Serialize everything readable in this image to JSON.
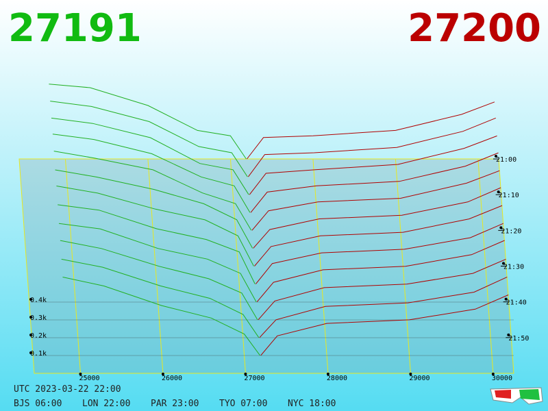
{
  "chart_data": {
    "type": "depth3d",
    "best_bid": 27191,
    "best_ask": 27200,
    "bid_color": "#22b022",
    "ask_color": "#b00000",
    "xlim": [
      24440,
      30250
    ],
    "xticks": [
      25000,
      26000,
      27000,
      28000,
      29000,
      30000
    ],
    "ylim": [
      0,
      600
    ],
    "yticks": [
      {
        "value": 100,
        "label": "0.1k"
      },
      {
        "value": 200,
        "label": "0.2k"
      },
      {
        "value": 300,
        "label": "0.3k"
      },
      {
        "value": 400,
        "label": "0.4k"
      }
    ],
    "zlim": [
      0,
      60
    ],
    "zticks": [
      {
        "value": 0,
        "label": "21:00"
      },
      {
        "value": 10,
        "label": "21:10"
      },
      {
        "value": 20,
        "label": "21:20"
      },
      {
        "value": 30,
        "label": "21:30"
      },
      {
        "value": 40,
        "label": "21:40"
      },
      {
        "value": 50,
        "label": "21:50"
      }
    ],
    "bid_prices": [
      24800,
      25300,
      26000,
      26600,
      27000,
      27191
    ],
    "ask_prices": [
      27200,
      27400,
      28000,
      29000,
      29800,
      30200
    ],
    "snapshots": [
      {
        "t": 0,
        "bids": [
          420,
          400,
          300,
          160,
          130,
          0
        ],
        "asks": [
          0,
          120,
          130,
          160,
          250,
          320
        ]
      },
      {
        "t": 5,
        "bids": [
          425,
          395,
          310,
          170,
          135,
          0
        ],
        "asks": [
          0,
          125,
          135,
          165,
          255,
          330
        ]
      },
      {
        "t": 10,
        "bids": [
          430,
          400,
          320,
          175,
          140,
          0
        ],
        "asks": [
          0,
          120,
          140,
          170,
          260,
          330
        ]
      },
      {
        "t": 15,
        "bids": [
          440,
          410,
          330,
          200,
          150,
          0
        ],
        "asks": [
          0,
          115,
          150,
          175,
          260,
          335
        ]
      },
      {
        "t": 20,
        "bids": [
          445,
          405,
          340,
          210,
          150,
          0
        ],
        "asks": [
          0,
          110,
          160,
          180,
          265,
          335
        ]
      },
      {
        "t": 25,
        "bids": [
          440,
          400,
          330,
          250,
          160,
          0
        ],
        "asks": [
          0,
          105,
          165,
          185,
          260,
          340
        ]
      },
      {
        "t": 30,
        "bids": [
          450,
          410,
          320,
          260,
          170,
          0
        ],
        "asks": [
          0,
          110,
          170,
          190,
          265,
          340
        ]
      },
      {
        "t": 35,
        "bids": [
          445,
          415,
          310,
          250,
          180,
          0
        ],
        "asks": [
          0,
          115,
          175,
          195,
          260,
          340
        ]
      },
      {
        "t": 40,
        "bids": [
          440,
          410,
          300,
          240,
          160,
          0
        ],
        "asks": [
          0,
          110,
          180,
          200,
          265,
          345
        ]
      },
      {
        "t": 45,
        "bids": [
          445,
          400,
          300,
          230,
          150,
          0
        ],
        "asks": [
          0,
          105,
          180,
          200,
          260,
          340
        ]
      },
      {
        "t": 50,
        "bids": [
          440,
          395,
          290,
          220,
          130,
          0
        ],
        "asks": [
          0,
          100,
          175,
          195,
          255,
          340
        ]
      },
      {
        "t": 55,
        "bids": [
          440,
          390,
          280,
          210,
          120,
          0
        ],
        "asks": [
          0,
          110,
          180,
          200,
          260,
          340
        ]
      }
    ]
  },
  "footer": {
    "utc": "UTC 2023-03-22 22:00",
    "zones": [
      "BJS 06:00",
      "LON 22:00",
      "PAR 23:00",
      "TYO 07:00",
      "NYC 18:00"
    ]
  }
}
